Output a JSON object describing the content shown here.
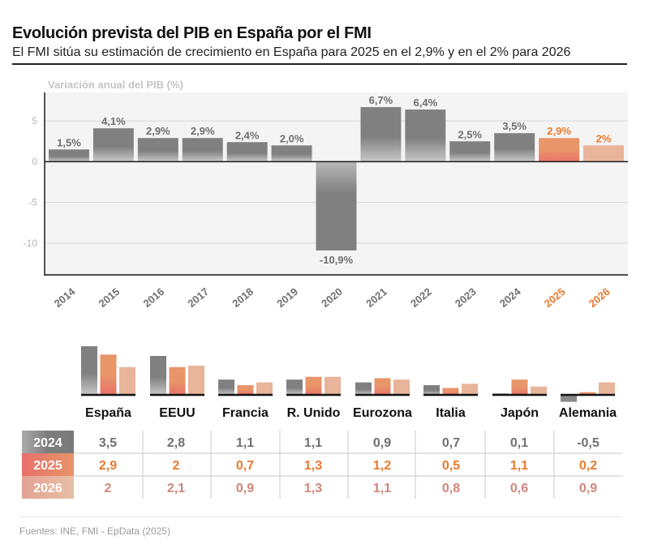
{
  "header": {
    "title": "Evolución prevista del PIB en España por el FMI",
    "subtitle": "El FMI sitúa su estimación de crecimiento en España para 2025 en el 2,9% y en el 2% para 2026"
  },
  "footer": {
    "source": "Fuentes: INE, FMI - EpData (2025)"
  },
  "colors": {
    "historic": "#808080",
    "forecast_2025": "#e8956a",
    "forecast_2026": "#e8b49a",
    "label_2025": "#e8792f",
    "label_2026_table": "#d0857a",
    "label_historic": "#6e6e6e",
    "plot_bg": "#f4f4f4"
  },
  "chart_data": [
    {
      "type": "bar",
      "title": "Variación anual del PIB (%)",
      "ylabel": "Variación anual del PIB (%)",
      "xlabel": "",
      "ylim": [
        -14,
        8.5
      ],
      "yticks": [
        5,
        0,
        -5,
        -10
      ],
      "ytick_labels": [
        "5",
        "0",
        "-5",
        "-10"
      ],
      "grid": true,
      "categories": [
        "2014",
        "2015",
        "2016",
        "2017",
        "2018",
        "2019",
        "2020",
        "2021",
        "2022",
        "2023",
        "2024",
        "2025",
        "2026"
      ],
      "values": [
        1.5,
        4.1,
        2.9,
        2.9,
        2.4,
        2.0,
        -10.9,
        6.7,
        6.4,
        2.5,
        3.5,
        2.9,
        2.0
      ],
      "data_labels": [
        "1,5%",
        "4,1%",
        "2,9%",
        "2,9%",
        "2,4%",
        "2,0%",
        "-10,9%",
        "6,7%",
        "6,4%",
        "2,5%",
        "3,5%",
        "2,9%",
        "2%"
      ],
      "highlight": {
        "2025": "forecast_2025",
        "2026": "forecast_2026"
      }
    },
    {
      "type": "bar",
      "title": "",
      "categories": [
        "España",
        "EEUU",
        "Francia",
        "R. Unido",
        "Eurozona",
        "Italia",
        "Japón",
        "Alemania"
      ],
      "series": [
        {
          "name": "2024",
          "values": [
            3.5,
            2.8,
            1.1,
            1.1,
            0.9,
            0.7,
            0.1,
            -0.5
          ],
          "labels": [
            "3,5",
            "2,8",
            "1,1",
            "1,1",
            "0,9",
            "0,7",
            "0,1",
            "-0,5"
          ]
        },
        {
          "name": "2025",
          "values": [
            2.9,
            2.0,
            0.7,
            1.3,
            1.2,
            0.5,
            1.1,
            0.2
          ],
          "labels": [
            "2,9",
            "2",
            "0,7",
            "1,3",
            "1,2",
            "0,5",
            "1,1",
            "0,2"
          ]
        },
        {
          "name": "2026",
          "values": [
            2.0,
            2.1,
            0.9,
            1.3,
            1.1,
            0.8,
            0.6,
            0.9
          ],
          "labels": [
            "2",
            "2,1",
            "0,9",
            "1,3",
            "1,1",
            "0,8",
            "0,6",
            "0,9"
          ]
        }
      ]
    }
  ]
}
